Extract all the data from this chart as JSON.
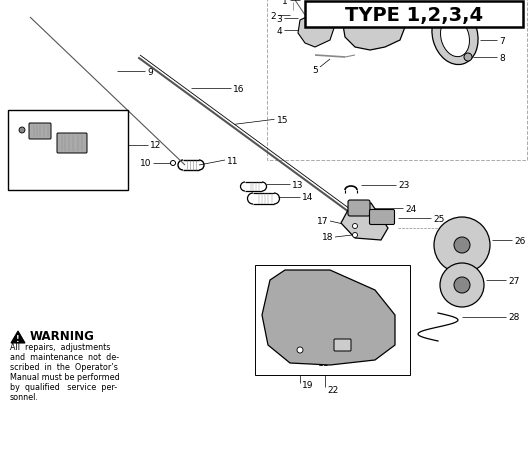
{
  "title": "TYPE 1,2,3,4",
  "title_fontsize": 14,
  "title_fontweight": "bold",
  "background_color": "#ffffff",
  "line_color": "#000000",
  "gray1": "#555555",
  "gray2": "#888888",
  "gray3": "#aaaaaa",
  "gray4": "#cccccc",
  "dashed_color": "#aaaaaa",
  "part_label_fontsize": 6.5,
  "leader_lw": 0.5,
  "fig_width": 5.28,
  "fig_height": 4.56,
  "dpi": 100,
  "warning_title": "WARNING",
  "warning_lines": [
    "All  repairs,  adjustments",
    "and  maintenance  not  de-",
    "scribed  in  the  Operator’s",
    "Manual must be performed",
    "by  qualified   service  per-",
    "sonnel."
  ]
}
